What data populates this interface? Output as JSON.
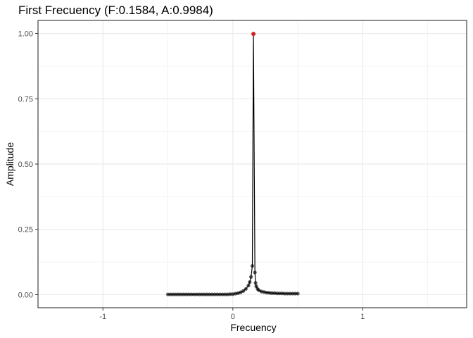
{
  "chart_data": {
    "type": "line",
    "title": "First Frecuency (F:0.1584, A:0.9984)",
    "xlabel": "Frecuency",
    "ylabel": "Amplitude",
    "xlim": [
      -1.5,
      1.8
    ],
    "ylim": [
      -0.05,
      1.05
    ],
    "x_ticks": [
      -1,
      0,
      1
    ],
    "x_tick_labels": [
      "-1",
      "0",
      "1"
    ],
    "y_ticks": [
      0,
      0.25,
      0.5,
      0.75,
      1.0
    ],
    "y_tick_labels": [
      "0.00",
      "0.25",
      "0.50",
      "0.75",
      "1.00"
    ],
    "grid": true,
    "peak": {
      "x": 0.1584,
      "y": 0.9984
    },
    "colors": {
      "line": "#000000",
      "points": "#000000",
      "peak": "#e41a1c",
      "grid": "#ebebeb",
      "panel_border": "#333333"
    },
    "series": [
      {
        "x": [
          -0.5,
          -0.48,
          -0.46,
          -0.44,
          -0.42,
          -0.4,
          -0.38,
          -0.36,
          -0.34,
          -0.32,
          -0.3,
          -0.28,
          -0.26,
          -0.24,
          -0.22,
          -0.2,
          -0.18,
          -0.16,
          -0.14,
          -0.12,
          -0.1,
          -0.08,
          -0.06,
          -0.04,
          -0.02,
          0.0,
          0.02,
          0.04,
          0.06,
          0.08,
          0.1,
          0.12,
          0.13,
          0.14,
          0.15,
          0.1584,
          0.17,
          0.175,
          0.18,
          0.19,
          0.2,
          0.22,
          0.24,
          0.26,
          0.28,
          0.3,
          0.32,
          0.34,
          0.36,
          0.38,
          0.4,
          0.42,
          0.44,
          0.46,
          0.48,
          0.5
        ],
        "y": [
          0.001,
          0.001,
          0.001,
          0.001,
          0.001,
          0.001,
          0.001,
          0.001,
          0.001,
          0.001,
          0.001,
          0.001,
          0.001,
          0.001,
          0.001,
          0.001,
          0.001,
          0.001,
          0.001,
          0.001,
          0.001,
          0.001,
          0.001,
          0.001,
          0.002,
          0.002,
          0.004,
          0.006,
          0.009,
          0.014,
          0.022,
          0.035,
          0.048,
          0.068,
          0.11,
          0.9984,
          0.085,
          0.045,
          0.032,
          0.022,
          0.017,
          0.012,
          0.01,
          0.008,
          0.007,
          0.006,
          0.006,
          0.005,
          0.005,
          0.005,
          0.004,
          0.004,
          0.004,
          0.004,
          0.004,
          0.004
        ]
      }
    ]
  }
}
